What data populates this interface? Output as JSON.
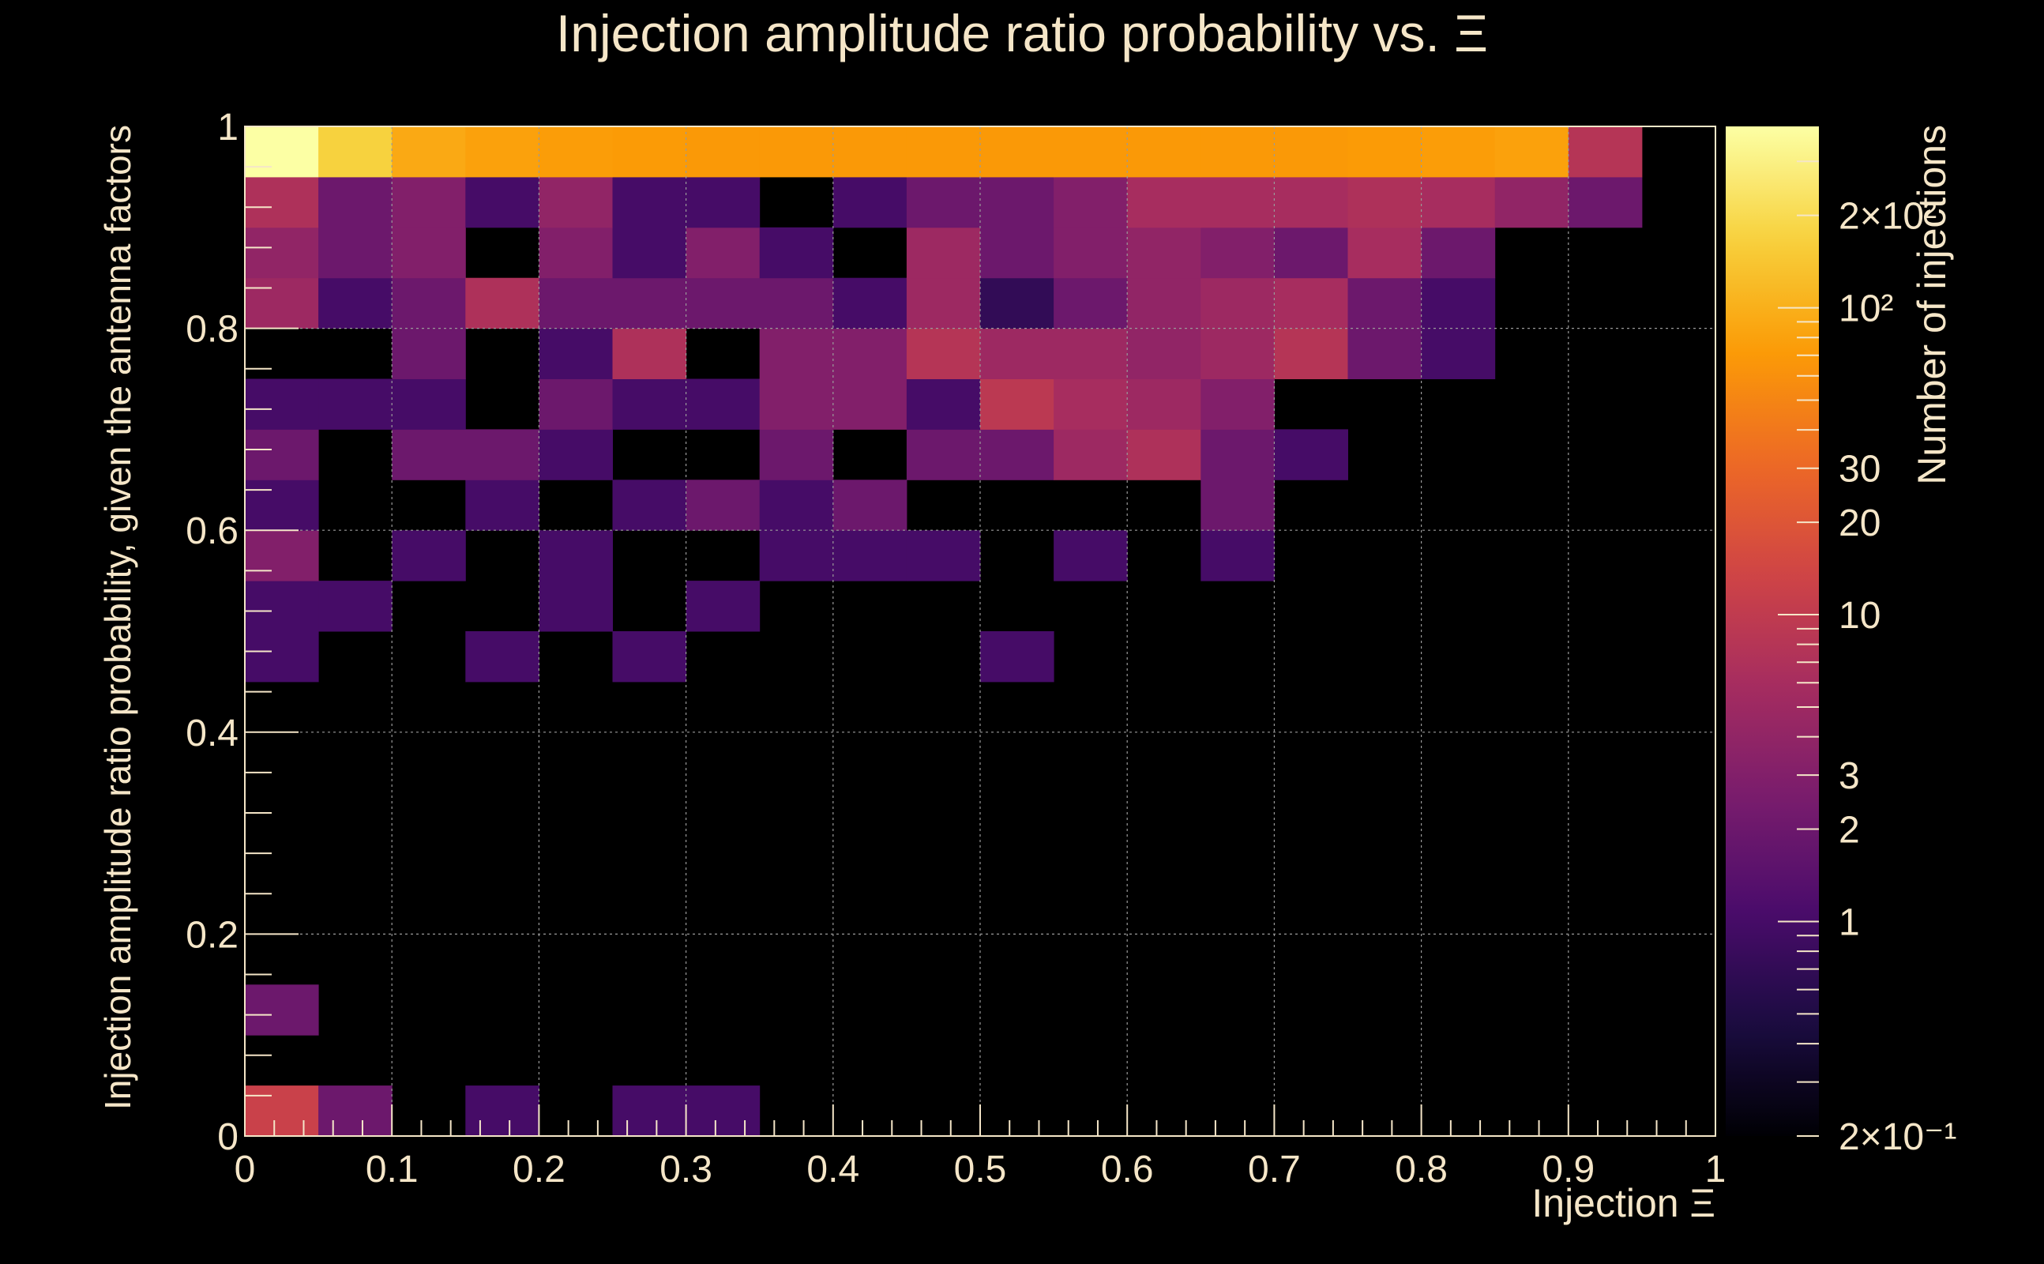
{
  "chart_data": {
    "type": "heatmap",
    "title": "Injection amplitude ratio probability vs.  Ξ",
    "xlabel": "Injection Ξ",
    "ylabel": "Injection amplitude ratio probability, given the antenna factors",
    "zlabel": "Number of injections",
    "xlim": [
      0,
      1
    ],
    "ylim": [
      0,
      1
    ],
    "x_ticks": [
      "0",
      "0.1",
      "0.2",
      "0.3",
      "0.4",
      "0.5",
      "0.6",
      "0.7",
      "0.8",
      "0.9",
      "1"
    ],
    "y_ticks": [
      "0",
      "0.2",
      "0.4",
      "0.6",
      "0.8",
      "1"
    ],
    "z_scale": "log",
    "zlim": [
      0.2,
      390
    ],
    "z_tick_labels": [
      {
        "value": 0.2,
        "label": "2×10⁻¹"
      },
      {
        "value": 1,
        "label": "1"
      },
      {
        "value": 2,
        "label": "2"
      },
      {
        "value": 3,
        "label": "3"
      },
      {
        "value": 10,
        "label": "10"
      },
      {
        "value": 20,
        "label": "20"
      },
      {
        "value": 30,
        "label": "30"
      },
      {
        "value": 100,
        "label": "10²"
      },
      {
        "value": 200,
        "label": "2×10²"
      }
    ],
    "grid": true,
    "x_bins": 20,
    "y_bins": 20,
    "bin_width": 0.05,
    "colormap": [
      "#000004",
      "#1b0c41",
      "#4a0c6b",
      "#781c6d",
      "#a52c60",
      "#cf4446",
      "#ed6925",
      "#fb9b06",
      "#f7d13d",
      "#fcffa4"
    ],
    "cells": [
      [
        0,
        0,
        12
      ],
      [
        1,
        0,
        2
      ],
      [
        3,
        0,
        1
      ],
      [
        5,
        0,
        1
      ],
      [
        6,
        0,
        1
      ],
      [
        0,
        2,
        2
      ],
      [
        0,
        9,
        1
      ],
      [
        3,
        9,
        1
      ],
      [
        5,
        9,
        1
      ],
      [
        10,
        9,
        1
      ],
      [
        0,
        10,
        1
      ],
      [
        1,
        10,
        1
      ],
      [
        4,
        10,
        1
      ],
      [
        6,
        10,
        1
      ],
      [
        0,
        11,
        3
      ],
      [
        2,
        11,
        1
      ],
      [
        4,
        11,
        1
      ],
      [
        7,
        11,
        1
      ],
      [
        8,
        11,
        1
      ],
      [
        9,
        11,
        1
      ],
      [
        11,
        11,
        1
      ],
      [
        13,
        11,
        1
      ],
      [
        0,
        12,
        1
      ],
      [
        3,
        12,
        1
      ],
      [
        5,
        12,
        1
      ],
      [
        6,
        12,
        2
      ],
      [
        7,
        12,
        1
      ],
      [
        8,
        12,
        2
      ],
      [
        13,
        12,
        2
      ],
      [
        0,
        13,
        2
      ],
      [
        2,
        13,
        2
      ],
      [
        3,
        13,
        2
      ],
      [
        4,
        13,
        1
      ],
      [
        7,
        13,
        2
      ],
      [
        9,
        13,
        2
      ],
      [
        10,
        13,
        2
      ],
      [
        11,
        13,
        5
      ],
      [
        12,
        13,
        7
      ],
      [
        13,
        13,
        2
      ],
      [
        14,
        13,
        1
      ],
      [
        0,
        14,
        1
      ],
      [
        1,
        14,
        1
      ],
      [
        2,
        14,
        1
      ],
      [
        4,
        14,
        2
      ],
      [
        5,
        14,
        1
      ],
      [
        6,
        14,
        1
      ],
      [
        7,
        14,
        3
      ],
      [
        8,
        14,
        3
      ],
      [
        9,
        14,
        1
      ],
      [
        10,
        14,
        9
      ],
      [
        11,
        14,
        6
      ],
      [
        12,
        14,
        5
      ],
      [
        13,
        14,
        3
      ],
      [
        2,
        15,
        2
      ],
      [
        4,
        15,
        1
      ],
      [
        5,
        15,
        7
      ],
      [
        7,
        15,
        3
      ],
      [
        8,
        15,
        3
      ],
      [
        9,
        15,
        8
      ],
      [
        10,
        15,
        5
      ],
      [
        11,
        15,
        5
      ],
      [
        12,
        15,
        4
      ],
      [
        13,
        15,
        5
      ],
      [
        14,
        15,
        8
      ],
      [
        15,
        15,
        2
      ],
      [
        16,
        15,
        1
      ],
      [
        0,
        16,
        5
      ],
      [
        1,
        16,
        1
      ],
      [
        2,
        16,
        2
      ],
      [
        3,
        16,
        7
      ],
      [
        4,
        16,
        2
      ],
      [
        5,
        16,
        2
      ],
      [
        6,
        16,
        2
      ],
      [
        7,
        16,
        2
      ],
      [
        8,
        16,
        1
      ],
      [
        9,
        16,
        5
      ],
      [
        10,
        16,
        0.7
      ],
      [
        11,
        16,
        2
      ],
      [
        12,
        16,
        4
      ],
      [
        13,
        16,
        5
      ],
      [
        14,
        16,
        6
      ],
      [
        15,
        16,
        2
      ],
      [
        16,
        16,
        1
      ],
      [
        0,
        17,
        4
      ],
      [
        1,
        17,
        2
      ],
      [
        2,
        17,
        3
      ],
      [
        4,
        17,
        3
      ],
      [
        5,
        17,
        1
      ],
      [
        6,
        17,
        3
      ],
      [
        7,
        17,
        1
      ],
      [
        9,
        17,
        5
      ],
      [
        10,
        17,
        2
      ],
      [
        11,
        17,
        3
      ],
      [
        12,
        17,
        4
      ],
      [
        13,
        17,
        3
      ],
      [
        14,
        17,
        2
      ],
      [
        15,
        17,
        6
      ],
      [
        16,
        17,
        2
      ],
      [
        0,
        18,
        7
      ],
      [
        1,
        18,
        2
      ],
      [
        2,
        18,
        3
      ],
      [
        3,
        18,
        1
      ],
      [
        4,
        18,
        4
      ],
      [
        5,
        18,
        1
      ],
      [
        6,
        18,
        1
      ],
      [
        8,
        18,
        1
      ],
      [
        9,
        18,
        2
      ],
      [
        10,
        18,
        2
      ],
      [
        11,
        18,
        3
      ],
      [
        12,
        18,
        6
      ],
      [
        13,
        18,
        6
      ],
      [
        14,
        18,
        6
      ],
      [
        15,
        18,
        7
      ],
      [
        16,
        18,
        6
      ],
      [
        17,
        18,
        4
      ],
      [
        18,
        18,
        2
      ],
      [
        0,
        19,
        390
      ],
      [
        1,
        19,
        170
      ],
      [
        2,
        19,
        90
      ],
      [
        3,
        19,
        80
      ],
      [
        4,
        19,
        75
      ],
      [
        5,
        19,
        72
      ],
      [
        6,
        19,
        70
      ],
      [
        7,
        19,
        70
      ],
      [
        8,
        19,
        70
      ],
      [
        9,
        19,
        70
      ],
      [
        10,
        19,
        70
      ],
      [
        11,
        19,
        70
      ],
      [
        12,
        19,
        70
      ],
      [
        13,
        19,
        70
      ],
      [
        14,
        19,
        70
      ],
      [
        15,
        19,
        72
      ],
      [
        16,
        19,
        75
      ],
      [
        17,
        19,
        80
      ],
      [
        18,
        19,
        8
      ]
    ]
  }
}
